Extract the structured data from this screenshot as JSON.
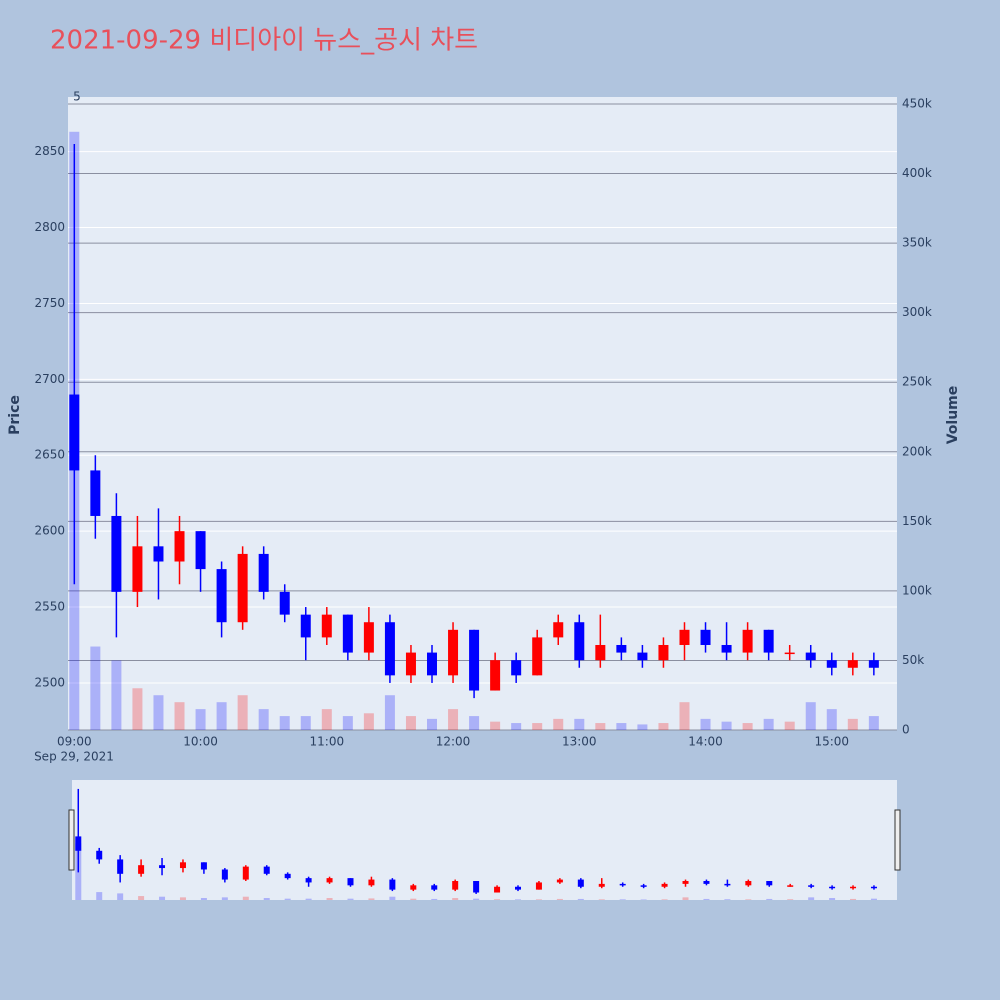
{
  "chart_data": {
    "type": "candlestick",
    "title": "2021-09-29 비디아이 뉴스_공시 차트",
    "annotation": "5",
    "x": [
      "09:00",
      "09:10",
      "09:20",
      "09:30",
      "09:40",
      "09:50",
      "10:00",
      "10:10",
      "10:20",
      "10:30",
      "10:40",
      "10:50",
      "11:00",
      "11:10",
      "11:20",
      "11:30",
      "11:40",
      "11:50",
      "12:00",
      "12:10",
      "12:20",
      "12:30",
      "12:40",
      "12:50",
      "13:00",
      "13:10",
      "13:20",
      "13:30",
      "13:40",
      "13:50",
      "14:00",
      "14:10",
      "14:20",
      "14:30",
      "14:40",
      "14:50",
      "15:00",
      "15:10",
      "15:20"
    ],
    "open": [
      2690,
      2640,
      2610,
      2560,
      2590,
      2580,
      2600,
      2575,
      2540,
      2585,
      2560,
      2545,
      2530,
      2545,
      2520,
      2540,
      2505,
      2520,
      2505,
      2535,
      2495,
      2515,
      2505,
      2530,
      2540,
      2515,
      2525,
      2520,
      2515,
      2525,
      2535,
      2525,
      2520,
      2535,
      2520,
      2520,
      2515,
      2510,
      2515
    ],
    "high": [
      2855,
      2650,
      2625,
      2610,
      2615,
      2610,
      2600,
      2580,
      2590,
      2590,
      2565,
      2550,
      2550,
      2545,
      2550,
      2545,
      2525,
      2525,
      2540,
      2535,
      2520,
      2520,
      2535,
      2545,
      2545,
      2545,
      2530,
      2525,
      2530,
      2540,
      2540,
      2540,
      2540,
      2535,
      2525,
      2525,
      2520,
      2520,
      2520
    ],
    "low": [
      2565,
      2595,
      2530,
      2550,
      2555,
      2565,
      2560,
      2530,
      2535,
      2555,
      2540,
      2515,
      2525,
      2515,
      2515,
      2500,
      2500,
      2500,
      2500,
      2490,
      2495,
      2500,
      2505,
      2525,
      2510,
      2510,
      2515,
      2510,
      2510,
      2515,
      2520,
      2515,
      2515,
      2515,
      2515,
      2510,
      2505,
      2505,
      2505
    ],
    "close": [
      2640,
      2610,
      2560,
      2590,
      2580,
      2600,
      2575,
      2540,
      2585,
      2560,
      2545,
      2530,
      2545,
      2520,
      2540,
      2505,
      2520,
      2505,
      2535,
      2495,
      2515,
      2505,
      2530,
      2540,
      2515,
      2525,
      2520,
      2515,
      2525,
      2535,
      2525,
      2520,
      2535,
      2520,
      2520,
      2515,
      2510,
      2515,
      2510
    ],
    "volume": [
      430000,
      60000,
      50000,
      30000,
      25000,
      20000,
      15000,
      20000,
      25000,
      15000,
      10000,
      10000,
      15000,
      10000,
      12000,
      25000,
      10000,
      8000,
      15000,
      10000,
      6000,
      5000,
      5000,
      8000,
      8000,
      5000,
      5000,
      4000,
      5000,
      20000,
      8000,
      6000,
      5000,
      8000,
      6000,
      20000,
      15000,
      8000,
      10000
    ],
    "increasing_color": "#ff0000",
    "decreasing_color": "#0000ff",
    "xlim": [
      "08:57",
      "15:31"
    ],
    "xticks": [
      "09:00",
      "10:00",
      "11:00",
      "12:00",
      "13:00",
      "14:00",
      "15:00"
    ],
    "x_date_label": "Sep 29, 2021",
    "ylabel": "Price",
    "ylim": [
      2469,
      2886
    ],
    "yticks": [
      2500,
      2550,
      2600,
      2650,
      2700,
      2750,
      2800,
      2850
    ],
    "y2label": "Volume",
    "y2lim": [
      0,
      455000
    ],
    "y2ticks": [
      0,
      {
        "value": 50000,
        "label": "50k"
      },
      {
        "value": 100000,
        "label": "100k"
      },
      {
        "value": 150000,
        "label": "150k"
      },
      {
        "value": 200000,
        "label": "200k"
      },
      {
        "value": 250000,
        "label": "250k"
      },
      {
        "value": 300000,
        "label": "300k"
      },
      {
        "value": 350000,
        "label": "350k"
      },
      {
        "value": 400000,
        "label": "400k"
      },
      {
        "value": 450000,
        "label": "450k"
      }
    ],
    "grid": true,
    "rangeslider": true
  }
}
